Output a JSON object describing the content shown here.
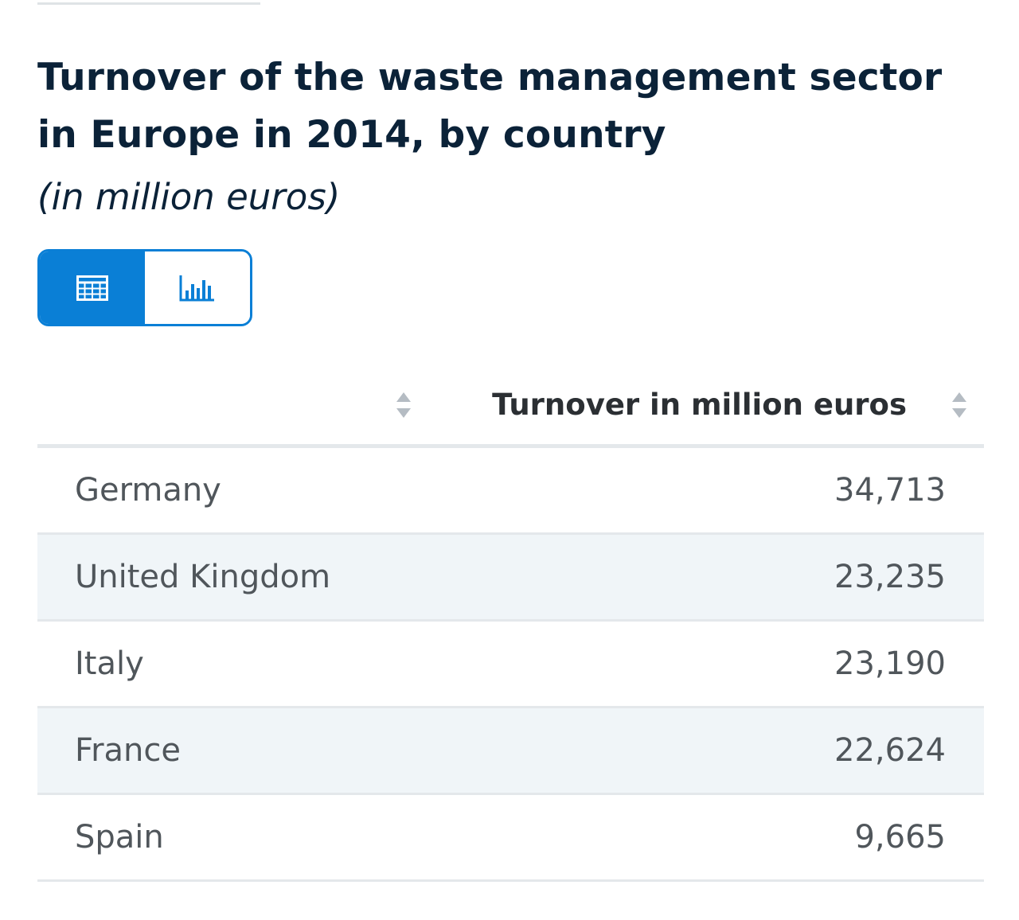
{
  "title": "Turnover of the waste management sector in Europe in 2014, by country",
  "subtitle": "(in million euros)",
  "view_toggle": {
    "table_icon": "table-grid-icon",
    "chart_icon": "bar-chart-icon",
    "active": "table"
  },
  "colors": {
    "accent": "#0a7fd6",
    "title": "#0b2238",
    "row_alt": "#f0f5f8"
  },
  "table": {
    "columns": [
      "",
      "Turnover in million euros"
    ],
    "rows": [
      {
        "country": "Germany",
        "value": "34,713"
      },
      {
        "country": "United Kingdom",
        "value": "23,235"
      },
      {
        "country": "Italy",
        "value": "23,190"
      },
      {
        "country": "France",
        "value": "22,624"
      },
      {
        "country": "Spain",
        "value": "9,665"
      }
    ]
  },
  "chart_data": {
    "type": "table",
    "title": "Turnover of the waste management sector in Europe in 2014, by country",
    "subtitle": "(in million euros)",
    "columns": [
      "",
      "Turnover in million euros"
    ],
    "categories": [
      "Germany",
      "United Kingdom",
      "Italy",
      "France",
      "Spain"
    ],
    "values": [
      34713,
      23235,
      23190,
      22624,
      9665
    ]
  }
}
